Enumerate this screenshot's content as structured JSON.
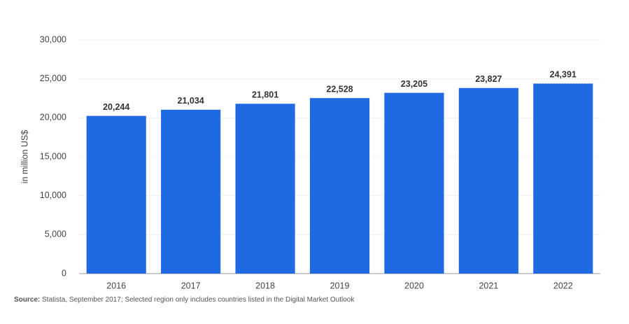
{
  "chart_data": {
    "type": "bar",
    "y_label": "in million US$",
    "categories": [
      "2016",
      "2017",
      "2018",
      "2019",
      "2020",
      "2021",
      "2022"
    ],
    "values": [
      20244,
      21034,
      21801,
      22528,
      23205,
      23827,
      24391
    ],
    "value_labels": [
      "20,244",
      "21,034",
      "21,801",
      "22,528",
      "23,205",
      "23,827",
      "24,391"
    ],
    "color": "#1f69e3",
    "ylim": [
      0,
      30000
    ],
    "yticks": [
      0,
      {
        "value": 5000,
        "label": "5,000"
      },
      {
        "value": 10000,
        "label": "10,000"
      },
      {
        "value": 15000,
        "label": "15,000"
      },
      {
        "value": 20000,
        "label": "20,000"
      },
      {
        "value": 25000,
        "label": "25,000"
      },
      {
        "value": 30000,
        "label": "30,000"
      }
    ],
    "grid": true,
    "source_label": "Source:",
    "source": "Statista, September 2017; Selected region only includes countries listed in the Digital Market Outlook"
  }
}
